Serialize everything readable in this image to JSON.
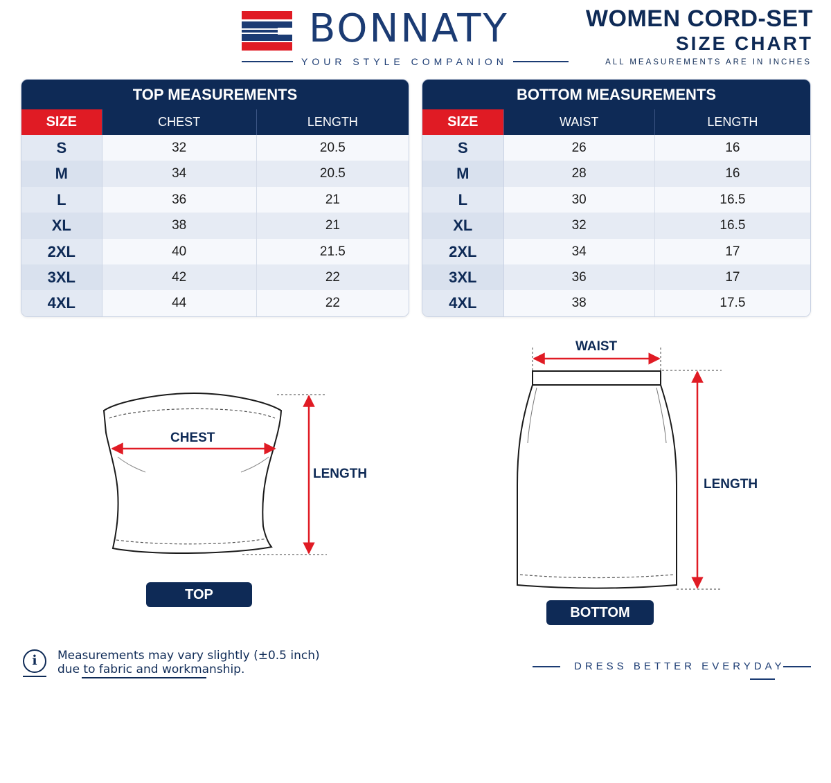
{
  "brand": {
    "name": "BONNATY",
    "tagline": "YOUR STYLE COMPANION",
    "colors": {
      "navy": "#0e2a56",
      "red": "#e01b24"
    }
  },
  "title": {
    "main": "WOMEN CORD-SET",
    "sub": "SIZE CHART",
    "note": "ALL MEASUREMENTS ARE IN INCHES"
  },
  "top_table": {
    "title": "TOP MEASUREMENTS",
    "headers": [
      "SIZE",
      "CHEST",
      "LENGTH"
    ],
    "rows": [
      [
        "S",
        "32",
        "20.5"
      ],
      [
        "M",
        "34",
        "20.5"
      ],
      [
        "L",
        "36",
        "21"
      ],
      [
        "XL",
        "38",
        "21"
      ],
      [
        "2XL",
        "40",
        "21.5"
      ],
      [
        "3XL",
        "42",
        "22"
      ],
      [
        "4XL",
        "44",
        "22"
      ]
    ]
  },
  "bottom_table": {
    "title": "BOTTOM MEASUREMENTS",
    "headers": [
      "SIZE",
      "WAIST",
      "LENGTH"
    ],
    "rows": [
      [
        "S",
        "26",
        "16"
      ],
      [
        "M",
        "28",
        "16"
      ],
      [
        "L",
        "30",
        "16.5"
      ],
      [
        "XL",
        "32",
        "16.5"
      ],
      [
        "2XL",
        "34",
        "17"
      ],
      [
        "3XL",
        "36",
        "17"
      ],
      [
        "4XL",
        "38",
        "17.5"
      ]
    ]
  },
  "top_diagram": {
    "chest_label": "CHEST",
    "length_label": "LENGTH",
    "caption": "TOP"
  },
  "bottom_diagram": {
    "waist_label": "WAIST",
    "length_label": "LENGTH",
    "caption": "BOTTOM"
  },
  "footer": {
    "info_icon": "info-icon",
    "note_line1": "Measurements may vary slightly (±0.5 inch)",
    "note_line2": "due to fabric and workmanship.",
    "slogan": "DRESS BETTER EVERYDAY"
  }
}
